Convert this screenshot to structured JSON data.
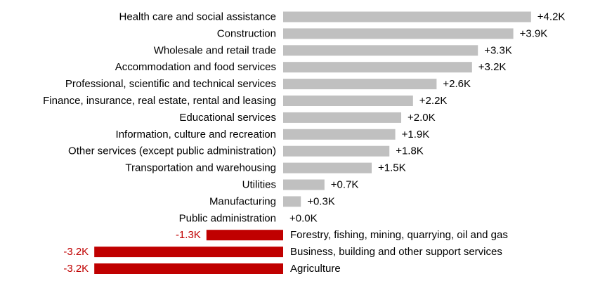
{
  "chart_data": {
    "type": "bar",
    "orientation": "horizontal",
    "title": "",
    "xlabel": "",
    "ylabel": "",
    "categories": [
      "Health care and social assistance",
      "Construction",
      "Wholesale and retail trade",
      "Accommodation and food services",
      "Professional, scientific and technical services",
      "Finance, insurance, real estate, rental and leasing",
      "Educational services",
      "Information, culture and recreation",
      "Other services (except public administration)",
      "Transportation and warehousing",
      "Utilities",
      "Manufacturing",
      "Public administration",
      "Forestry, fishing, mining, quarrying, oil and gas",
      "Business, building and other support services",
      "Agriculture"
    ],
    "values": [
      4.2,
      3.9,
      3.3,
      3.2,
      2.6,
      2.2,
      2.0,
      1.9,
      1.8,
      1.5,
      0.7,
      0.3,
      0.0,
      -1.3,
      -3.2,
      -3.2
    ],
    "value_labels": [
      "+4.2K",
      "+3.9K",
      "+3.3K",
      "+3.2K",
      "+2.6K",
      "+2.2K",
      "+2.0K",
      "+1.9K",
      "+1.8K",
      "+1.5K",
      "+0.7K",
      "+0.3K",
      "+0.0K",
      "-1.3K",
      "-3.2K",
      "-3.2K"
    ],
    "unit": "K",
    "grid": false,
    "legend": "none",
    "colors": {
      "positive": "#c0c0c0",
      "negative": "#c00000",
      "positive_text": "#000000",
      "negative_text": "#c00000"
    }
  }
}
